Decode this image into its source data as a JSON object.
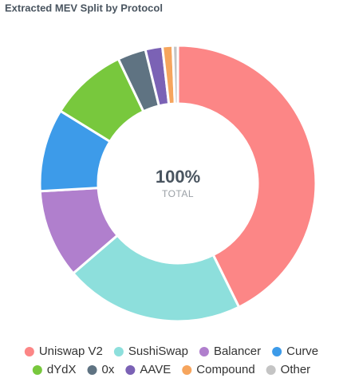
{
  "chart_data": {
    "type": "donut",
    "title": "Extracted MEV Split by Protocol",
    "center_value": "100%",
    "center_label": "TOTAL",
    "categories": [
      "Uniswap V2",
      "SushiSwap",
      "Balancer",
      "Curve",
      "dYdX",
      "0x",
      "AAVE",
      "Compound",
      "Other"
    ],
    "values": [
      42.7,
      21,
      10.4,
      9.7,
      9.1,
      3.3,
      2,
      1.2,
      0.6
    ],
    "colors": [
      "#fc8686",
      "#8ddfdc",
      "#b07fcd",
      "#3d9be9",
      "#78c83d",
      "#5f7382",
      "#7b62b5",
      "#f6a55d",
      "#c4c4c4"
    ]
  }
}
